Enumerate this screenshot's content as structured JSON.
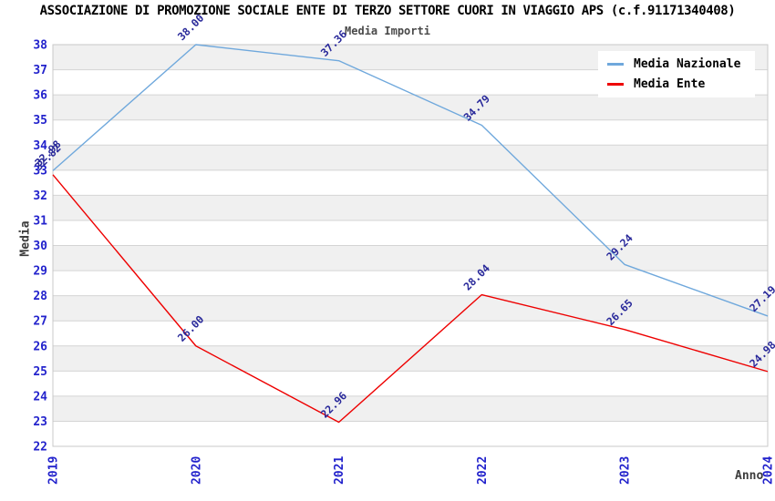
{
  "header": {
    "title": "ASSOCIAZIONE DI PROMOZIONE SOCIALE ENTE DI TERZO SETTORE CUORI IN VIAGGIO APS (c.f.91171340408)"
  },
  "chart_data": {
    "type": "line",
    "title": "Media Importi",
    "xlabel": "Anno",
    "ylabel": "Media",
    "categories": [
      "2019",
      "2020",
      "2021",
      "2022",
      "2023",
      "2024"
    ],
    "series": [
      {
        "name": "Media Nazionale",
        "color": "#6fa8dc",
        "values": [
          32.98,
          38.0,
          37.36,
          34.79,
          29.24,
          27.19
        ]
      },
      {
        "name": "Media Ente",
        "color": "#ee0000",
        "values": [
          32.82,
          26.0,
          22.96,
          28.04,
          26.65,
          24.98
        ]
      }
    ],
    "ylim": [
      22,
      38
    ],
    "ytick_step": 1,
    "grid": true,
    "banded_background": true,
    "legend_position": "top-right",
    "value_label_decimals": 2
  },
  "colors": {
    "title": "#000000",
    "subtitle": "#4a4a4a",
    "axis_title": "#3c3c3c",
    "tick_label": "#2222cc",
    "value_label": "#28289a",
    "grid_line": "#d4d4d4",
    "plot_border": "#c8c8c8",
    "band_fill": "#f0f0f0",
    "background": "#ffffff"
  }
}
